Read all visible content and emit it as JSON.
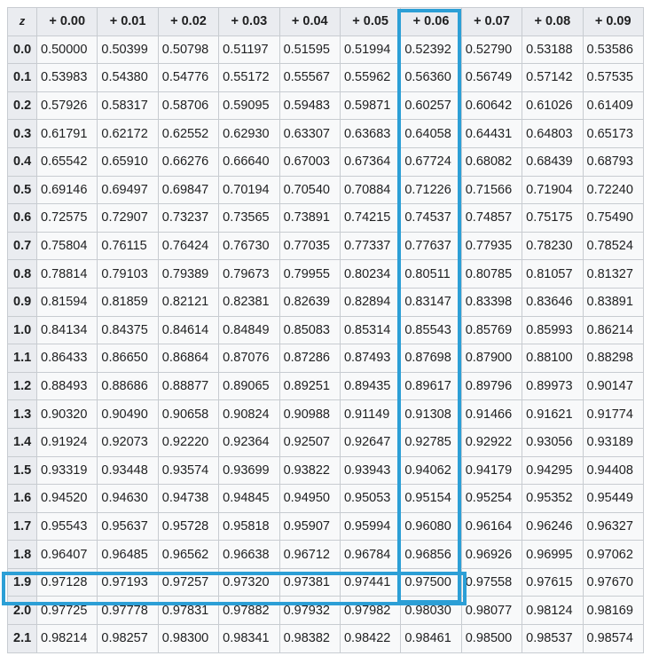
{
  "table": {
    "corner": "z",
    "columns": [
      "+ 0.00",
      "+ 0.01",
      "+ 0.02",
      "+ 0.03",
      "+ 0.04",
      "+ 0.05",
      "+ 0.06",
      "+ 0.07",
      "+ 0.08",
      "+ 0.09"
    ],
    "rows": [
      {
        "z": "0.0",
        "values": [
          "0.50000",
          "0.50399",
          "0.50798",
          "0.51197",
          "0.51595",
          "0.51994",
          "0.52392",
          "0.52790",
          "0.53188",
          "0.53586"
        ]
      },
      {
        "z": "0.1",
        "values": [
          "0.53983",
          "0.54380",
          "0.54776",
          "0.55172",
          "0.55567",
          "0.55962",
          "0.56360",
          "0.56749",
          "0.57142",
          "0.57535"
        ]
      },
      {
        "z": "0.2",
        "values": [
          "0.57926",
          "0.58317",
          "0.58706",
          "0.59095",
          "0.59483",
          "0.59871",
          "0.60257",
          "0.60642",
          "0.61026",
          "0.61409"
        ]
      },
      {
        "z": "0.3",
        "values": [
          "0.61791",
          "0.62172",
          "0.62552",
          "0.62930",
          "0.63307",
          "0.63683",
          "0.64058",
          "0.64431",
          "0.64803",
          "0.65173"
        ]
      },
      {
        "z": "0.4",
        "values": [
          "0.65542",
          "0.65910",
          "0.66276",
          "0.66640",
          "0.67003",
          "0.67364",
          "0.67724",
          "0.68082",
          "0.68439",
          "0.68793"
        ]
      },
      {
        "z": "0.5",
        "values": [
          "0.69146",
          "0.69497",
          "0.69847",
          "0.70194",
          "0.70540",
          "0.70884",
          "0.71226",
          "0.71566",
          "0.71904",
          "0.72240"
        ]
      },
      {
        "z": "0.6",
        "values": [
          "0.72575",
          "0.72907",
          "0.73237",
          "0.73565",
          "0.73891",
          "0.74215",
          "0.74537",
          "0.74857",
          "0.75175",
          "0.75490"
        ]
      },
      {
        "z": "0.7",
        "values": [
          "0.75804",
          "0.76115",
          "0.76424",
          "0.76730",
          "0.77035",
          "0.77337",
          "0.77637",
          "0.77935",
          "0.78230",
          "0.78524"
        ]
      },
      {
        "z": "0.8",
        "values": [
          "0.78814",
          "0.79103",
          "0.79389",
          "0.79673",
          "0.79955",
          "0.80234",
          "0.80511",
          "0.80785",
          "0.81057",
          "0.81327"
        ]
      },
      {
        "z": "0.9",
        "values": [
          "0.81594",
          "0.81859",
          "0.82121",
          "0.82381",
          "0.82639",
          "0.82894",
          "0.83147",
          "0.83398",
          "0.83646",
          "0.83891"
        ]
      },
      {
        "z": "1.0",
        "values": [
          "0.84134",
          "0.84375",
          "0.84614",
          "0.84849",
          "0.85083",
          "0.85314",
          "0.85543",
          "0.85769",
          "0.85993",
          "0.86214"
        ]
      },
      {
        "z": "1.1",
        "values": [
          "0.86433",
          "0.86650",
          "0.86864",
          "0.87076",
          "0.87286",
          "0.87493",
          "0.87698",
          "0.87900",
          "0.88100",
          "0.88298"
        ]
      },
      {
        "z": "1.2",
        "values": [
          "0.88493",
          "0.88686",
          "0.88877",
          "0.89065",
          "0.89251",
          "0.89435",
          "0.89617",
          "0.89796",
          "0.89973",
          "0.90147"
        ]
      },
      {
        "z": "1.3",
        "values": [
          "0.90320",
          "0.90490",
          "0.90658",
          "0.90824",
          "0.90988",
          "0.91149",
          "0.91308",
          "0.91466",
          "0.91621",
          "0.91774"
        ]
      },
      {
        "z": "1.4",
        "values": [
          "0.91924",
          "0.92073",
          "0.92220",
          "0.92364",
          "0.92507",
          "0.92647",
          "0.92785",
          "0.92922",
          "0.93056",
          "0.93189"
        ]
      },
      {
        "z": "1.5",
        "values": [
          "0.93319",
          "0.93448",
          "0.93574",
          "0.93699",
          "0.93822",
          "0.93943",
          "0.94062",
          "0.94179",
          "0.94295",
          "0.94408"
        ]
      },
      {
        "z": "1.6",
        "values": [
          "0.94520",
          "0.94630",
          "0.94738",
          "0.94845",
          "0.94950",
          "0.95053",
          "0.95154",
          "0.95254",
          "0.95352",
          "0.95449"
        ]
      },
      {
        "z": "1.7",
        "values": [
          "0.95543",
          "0.95637",
          "0.95728",
          "0.95818",
          "0.95907",
          "0.95994",
          "0.96080",
          "0.96164",
          "0.96246",
          "0.96327"
        ]
      },
      {
        "z": "1.8",
        "values": [
          "0.96407",
          "0.96485",
          "0.96562",
          "0.96638",
          "0.96712",
          "0.96784",
          "0.96856",
          "0.96926",
          "0.96995",
          "0.97062"
        ]
      },
      {
        "z": "1.9",
        "values": [
          "0.97128",
          "0.97193",
          "0.97257",
          "0.97320",
          "0.97381",
          "0.97441",
          "0.97500",
          "0.97558",
          "0.97615",
          "0.97670"
        ]
      },
      {
        "z": "2.0",
        "values": [
          "0.97725",
          "0.97778",
          "0.97831",
          "0.97882",
          "0.97932",
          "0.97982",
          "0.98030",
          "0.98077",
          "0.98124",
          "0.98169"
        ]
      },
      {
        "z": "2.1",
        "values": [
          "0.98214",
          "0.98257",
          "0.98300",
          "0.98341",
          "0.98382",
          "0.98422",
          "0.98461",
          "0.98500",
          "0.98537",
          "0.98574"
        ]
      }
    ]
  },
  "highlight": {
    "column": "+ 0.06",
    "row": "1.9",
    "color": "#2c9fd6"
  }
}
